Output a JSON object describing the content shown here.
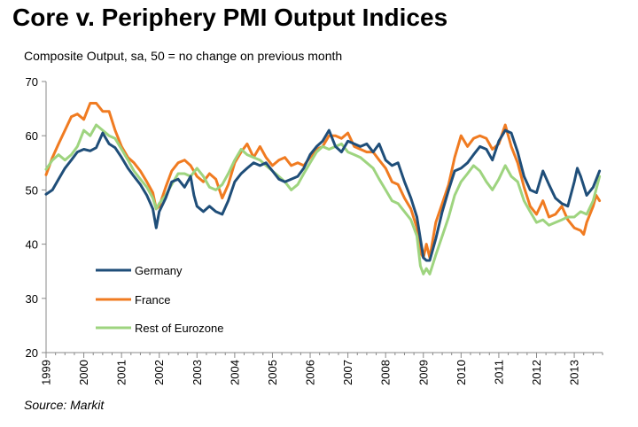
{
  "chart_data": {
    "type": "line",
    "title": "Core v. Periphery PMI Output Indices",
    "subtitle": "Composite Output,  sa, 50 = no change on previous month",
    "source": "Source: Markit",
    "ylim": [
      20,
      70
    ],
    "yticks": [
      20,
      30,
      40,
      50,
      60,
      70
    ],
    "xlim": [
      1999.0,
      2013.75
    ],
    "xticks": [
      1999,
      2000,
      2001,
      2002,
      2003,
      2004,
      2005,
      2006,
      2007,
      2008,
      2009,
      2010,
      2011,
      2012,
      2013
    ],
    "grid": false,
    "legend_position": "lower-left",
    "series": [
      {
        "name": "Germany",
        "color": "#1f4e79",
        "points": [
          [
            1999.0,
            49.2
          ],
          [
            1999.17,
            50.0
          ],
          [
            1999.33,
            52.0
          ],
          [
            1999.5,
            54.0
          ],
          [
            1999.67,
            55.5
          ],
          [
            1999.83,
            57.0
          ],
          [
            2000.0,
            57.5
          ],
          [
            2000.17,
            57.2
          ],
          [
            2000.33,
            57.8
          ],
          [
            2000.5,
            60.5
          ],
          [
            2000.67,
            58.5
          ],
          [
            2000.83,
            57.8
          ],
          [
            2001.0,
            56.0
          ],
          [
            2001.17,
            54.0
          ],
          [
            2001.33,
            52.5
          ],
          [
            2001.5,
            51.0
          ],
          [
            2001.67,
            49.0
          ],
          [
            2001.83,
            46.5
          ],
          [
            2001.92,
            43.0
          ],
          [
            2002.0,
            46.0
          ],
          [
            2002.17,
            48.5
          ],
          [
            2002.33,
            51.5
          ],
          [
            2002.5,
            52.0
          ],
          [
            2002.67,
            50.5
          ],
          [
            2002.83,
            52.5
          ],
          [
            2002.92,
            49.0
          ],
          [
            2003.0,
            47.0
          ],
          [
            2003.17,
            46.0
          ],
          [
            2003.33,
            47.0
          ],
          [
            2003.5,
            46.0
          ],
          [
            2003.67,
            45.5
          ],
          [
            2003.83,
            48.0
          ],
          [
            2004.0,
            51.5
          ],
          [
            2004.17,
            53.0
          ],
          [
            2004.33,
            54.0
          ],
          [
            2004.5,
            55.0
          ],
          [
            2004.67,
            54.5
          ],
          [
            2004.83,
            55.0
          ],
          [
            2005.0,
            53.5
          ],
          [
            2005.17,
            52.0
          ],
          [
            2005.33,
            51.5
          ],
          [
            2005.5,
            52.0
          ],
          [
            2005.67,
            52.5
          ],
          [
            2005.83,
            54.0
          ],
          [
            2006.0,
            56.5
          ],
          [
            2006.17,
            58.0
          ],
          [
            2006.33,
            59.0
          ],
          [
            2006.5,
            61.0
          ],
          [
            2006.67,
            58.0
          ],
          [
            2006.83,
            57.0
          ],
          [
            2007.0,
            59.0
          ],
          [
            2007.17,
            58.5
          ],
          [
            2007.33,
            58.0
          ],
          [
            2007.5,
            58.5
          ],
          [
            2007.67,
            57.0
          ],
          [
            2007.83,
            58.5
          ],
          [
            2008.0,
            55.5
          ],
          [
            2008.17,
            54.5
          ],
          [
            2008.33,
            55.0
          ],
          [
            2008.5,
            51.5
          ],
          [
            2008.67,
            48.5
          ],
          [
            2008.83,
            45.0
          ],
          [
            2008.92,
            41.0
          ],
          [
            2009.0,
            37.5
          ],
          [
            2009.08,
            37.0
          ],
          [
            2009.17,
            37.0
          ],
          [
            2009.33,
            41.0
          ],
          [
            2009.5,
            46.0
          ],
          [
            2009.67,
            50.0
          ],
          [
            2009.83,
            53.5
          ],
          [
            2010.0,
            54.0
          ],
          [
            2010.17,
            55.0
          ],
          [
            2010.33,
            56.5
          ],
          [
            2010.5,
            58.0
          ],
          [
            2010.67,
            57.5
          ],
          [
            2010.83,
            55.5
          ],
          [
            2011.0,
            59.0
          ],
          [
            2011.17,
            61.0
          ],
          [
            2011.33,
            60.5
          ],
          [
            2011.5,
            57.0
          ],
          [
            2011.67,
            52.5
          ],
          [
            2011.83,
            50.0
          ],
          [
            2012.0,
            49.5
          ],
          [
            2012.17,
            53.5
          ],
          [
            2012.33,
            51.0
          ],
          [
            2012.5,
            48.5
          ],
          [
            2012.67,
            47.5
          ],
          [
            2012.83,
            47.0
          ],
          [
            2013.0,
            51.5
          ],
          [
            2013.08,
            54.0
          ],
          [
            2013.17,
            52.5
          ],
          [
            2013.33,
            49.0
          ],
          [
            2013.5,
            50.5
          ],
          [
            2013.67,
            53.5
          ]
        ]
      },
      {
        "name": "France",
        "color": "#f07b21",
        "points": [
          [
            1999.0,
            52.8
          ],
          [
            1999.17,
            56.0
          ],
          [
            1999.33,
            58.5
          ],
          [
            1999.5,
            61.0
          ],
          [
            1999.67,
            63.5
          ],
          [
            1999.83,
            64.0
          ],
          [
            2000.0,
            63.0
          ],
          [
            2000.17,
            66.0
          ],
          [
            2000.33,
            66.0
          ],
          [
            2000.5,
            64.5
          ],
          [
            2000.67,
            64.5
          ],
          [
            2000.83,
            61.0
          ],
          [
            2001.0,
            58.0
          ],
          [
            2001.17,
            56.0
          ],
          [
            2001.33,
            55.0
          ],
          [
            2001.5,
            53.5
          ],
          [
            2001.67,
            51.5
          ],
          [
            2001.83,
            49.5
          ],
          [
            2001.92,
            46.5
          ],
          [
            2002.0,
            47.0
          ],
          [
            2002.17,
            50.5
          ],
          [
            2002.33,
            53.5
          ],
          [
            2002.5,
            55.0
          ],
          [
            2002.67,
            55.5
          ],
          [
            2002.83,
            54.5
          ],
          [
            2003.0,
            52.5
          ],
          [
            2003.17,
            51.5
          ],
          [
            2003.33,
            53.0
          ],
          [
            2003.5,
            52.0
          ],
          [
            2003.67,
            48.5
          ],
          [
            2003.83,
            51.0
          ],
          [
            2004.0,
            55.0
          ],
          [
            2004.17,
            57.0
          ],
          [
            2004.33,
            58.5
          ],
          [
            2004.5,
            56.0
          ],
          [
            2004.67,
            58.0
          ],
          [
            2004.83,
            56.0
          ],
          [
            2005.0,
            54.5
          ],
          [
            2005.17,
            55.5
          ],
          [
            2005.33,
            56.0
          ],
          [
            2005.5,
            54.5
          ],
          [
            2005.67,
            55.0
          ],
          [
            2005.83,
            54.5
          ],
          [
            2006.0,
            56.0
          ],
          [
            2006.17,
            57.5
          ],
          [
            2006.33,
            58.0
          ],
          [
            2006.5,
            60.0
          ],
          [
            2006.67,
            60.0
          ],
          [
            2006.83,
            59.5
          ],
          [
            2007.0,
            60.5
          ],
          [
            2007.17,
            58.0
          ],
          [
            2007.33,
            57.5
          ],
          [
            2007.5,
            57.0
          ],
          [
            2007.67,
            57.0
          ],
          [
            2007.83,
            55.5
          ],
          [
            2008.0,
            54.0
          ],
          [
            2008.17,
            51.5
          ],
          [
            2008.33,
            51.0
          ],
          [
            2008.5,
            48.5
          ],
          [
            2008.67,
            46.5
          ],
          [
            2008.83,
            43.0
          ],
          [
            2008.92,
            38.5
          ],
          [
            2009.0,
            37.5
          ],
          [
            2009.08,
            40.0
          ],
          [
            2009.17,
            37.5
          ],
          [
            2009.33,
            44.0
          ],
          [
            2009.5,
            47.5
          ],
          [
            2009.67,
            51.0
          ],
          [
            2009.83,
            56.0
          ],
          [
            2010.0,
            60.0
          ],
          [
            2010.17,
            58.0
          ],
          [
            2010.33,
            59.5
          ],
          [
            2010.5,
            60.0
          ],
          [
            2010.67,
            59.5
          ],
          [
            2010.83,
            57.5
          ],
          [
            2011.0,
            58.5
          ],
          [
            2011.17,
            62.0
          ],
          [
            2011.33,
            58.0
          ],
          [
            2011.5,
            55.0
          ],
          [
            2011.67,
            50.5
          ],
          [
            2011.83,
            47.0
          ],
          [
            2012.0,
            45.5
          ],
          [
            2012.17,
            48.0
          ],
          [
            2012.33,
            45.0
          ],
          [
            2012.5,
            45.5
          ],
          [
            2012.67,
            47.0
          ],
          [
            2012.83,
            44.5
          ],
          [
            2013.0,
            43.0
          ],
          [
            2013.17,
            42.5
          ],
          [
            2013.25,
            41.8
          ],
          [
            2013.33,
            44.0
          ],
          [
            2013.5,
            47.0
          ],
          [
            2013.58,
            49.0
          ],
          [
            2013.67,
            48.0
          ]
        ]
      },
      {
        "name": "Rest of Eurozone",
        "color": "#9ed47f",
        "points": [
          [
            1999.0,
            53.8
          ],
          [
            1999.17,
            55.5
          ],
          [
            1999.33,
            56.5
          ],
          [
            1999.5,
            55.5
          ],
          [
            1999.67,
            56.5
          ],
          [
            1999.83,
            58.0
          ],
          [
            2000.0,
            61.0
          ],
          [
            2000.17,
            60.0
          ],
          [
            2000.33,
            62.0
          ],
          [
            2000.5,
            61.0
          ],
          [
            2000.67,
            60.0
          ],
          [
            2000.83,
            59.5
          ],
          [
            2001.0,
            57.5
          ],
          [
            2001.17,
            55.5
          ],
          [
            2001.33,
            53.5
          ],
          [
            2001.5,
            52.0
          ],
          [
            2001.67,
            50.5
          ],
          [
            2001.83,
            48.5
          ],
          [
            2001.92,
            46.5
          ],
          [
            2002.0,
            47.5
          ],
          [
            2002.17,
            49.0
          ],
          [
            2002.33,
            51.0
          ],
          [
            2002.5,
            53.0
          ],
          [
            2002.67,
            53.0
          ],
          [
            2002.83,
            52.5
          ],
          [
            2003.0,
            54.0
          ],
          [
            2003.17,
            52.5
          ],
          [
            2003.33,
            50.5
          ],
          [
            2003.5,
            50.0
          ],
          [
            2003.67,
            51.0
          ],
          [
            2003.83,
            53.0
          ],
          [
            2004.0,
            55.5
          ],
          [
            2004.17,
            57.5
          ],
          [
            2004.33,
            56.5
          ],
          [
            2004.5,
            56.0
          ],
          [
            2004.67,
            55.5
          ],
          [
            2004.83,
            54.5
          ],
          [
            2005.0,
            53.5
          ],
          [
            2005.17,
            52.5
          ],
          [
            2005.33,
            51.5
          ],
          [
            2005.5,
            50.0
          ],
          [
            2005.67,
            51.0
          ],
          [
            2005.83,
            53.0
          ],
          [
            2006.0,
            55.0
          ],
          [
            2006.17,
            57.0
          ],
          [
            2006.33,
            58.0
          ],
          [
            2006.5,
            57.5
          ],
          [
            2006.67,
            58.0
          ],
          [
            2006.83,
            58.5
          ],
          [
            2007.0,
            57.0
          ],
          [
            2007.17,
            56.5
          ],
          [
            2007.33,
            56.0
          ],
          [
            2007.5,
            55.0
          ],
          [
            2007.67,
            54.0
          ],
          [
            2007.83,
            52.0
          ],
          [
            2008.0,
            50.0
          ],
          [
            2008.17,
            48.0
          ],
          [
            2008.33,
            47.5
          ],
          [
            2008.5,
            46.0
          ],
          [
            2008.67,
            44.5
          ],
          [
            2008.83,
            41.5
          ],
          [
            2008.92,
            36.0
          ],
          [
            2009.0,
            34.5
          ],
          [
            2009.08,
            35.5
          ],
          [
            2009.17,
            34.5
          ],
          [
            2009.33,
            38.0
          ],
          [
            2009.5,
            41.5
          ],
          [
            2009.67,
            45.0
          ],
          [
            2009.83,
            49.0
          ],
          [
            2010.0,
            51.5
          ],
          [
            2010.17,
            53.0
          ],
          [
            2010.33,
            54.5
          ],
          [
            2010.5,
            53.5
          ],
          [
            2010.67,
            51.5
          ],
          [
            2010.83,
            50.0
          ],
          [
            2011.0,
            52.0
          ],
          [
            2011.17,
            54.5
          ],
          [
            2011.33,
            52.5
          ],
          [
            2011.5,
            51.5
          ],
          [
            2011.67,
            48.0
          ],
          [
            2011.83,
            46.0
          ],
          [
            2012.0,
            44.0
          ],
          [
            2012.17,
            44.5
          ],
          [
            2012.33,
            43.5
          ],
          [
            2012.5,
            44.0
          ],
          [
            2012.67,
            44.5
          ],
          [
            2012.83,
            45.0
          ],
          [
            2013.0,
            45.0
          ],
          [
            2013.17,
            46.0
          ],
          [
            2013.33,
            45.5
          ],
          [
            2013.5,
            48.0
          ],
          [
            2013.67,
            52.5
          ]
        ]
      }
    ]
  }
}
